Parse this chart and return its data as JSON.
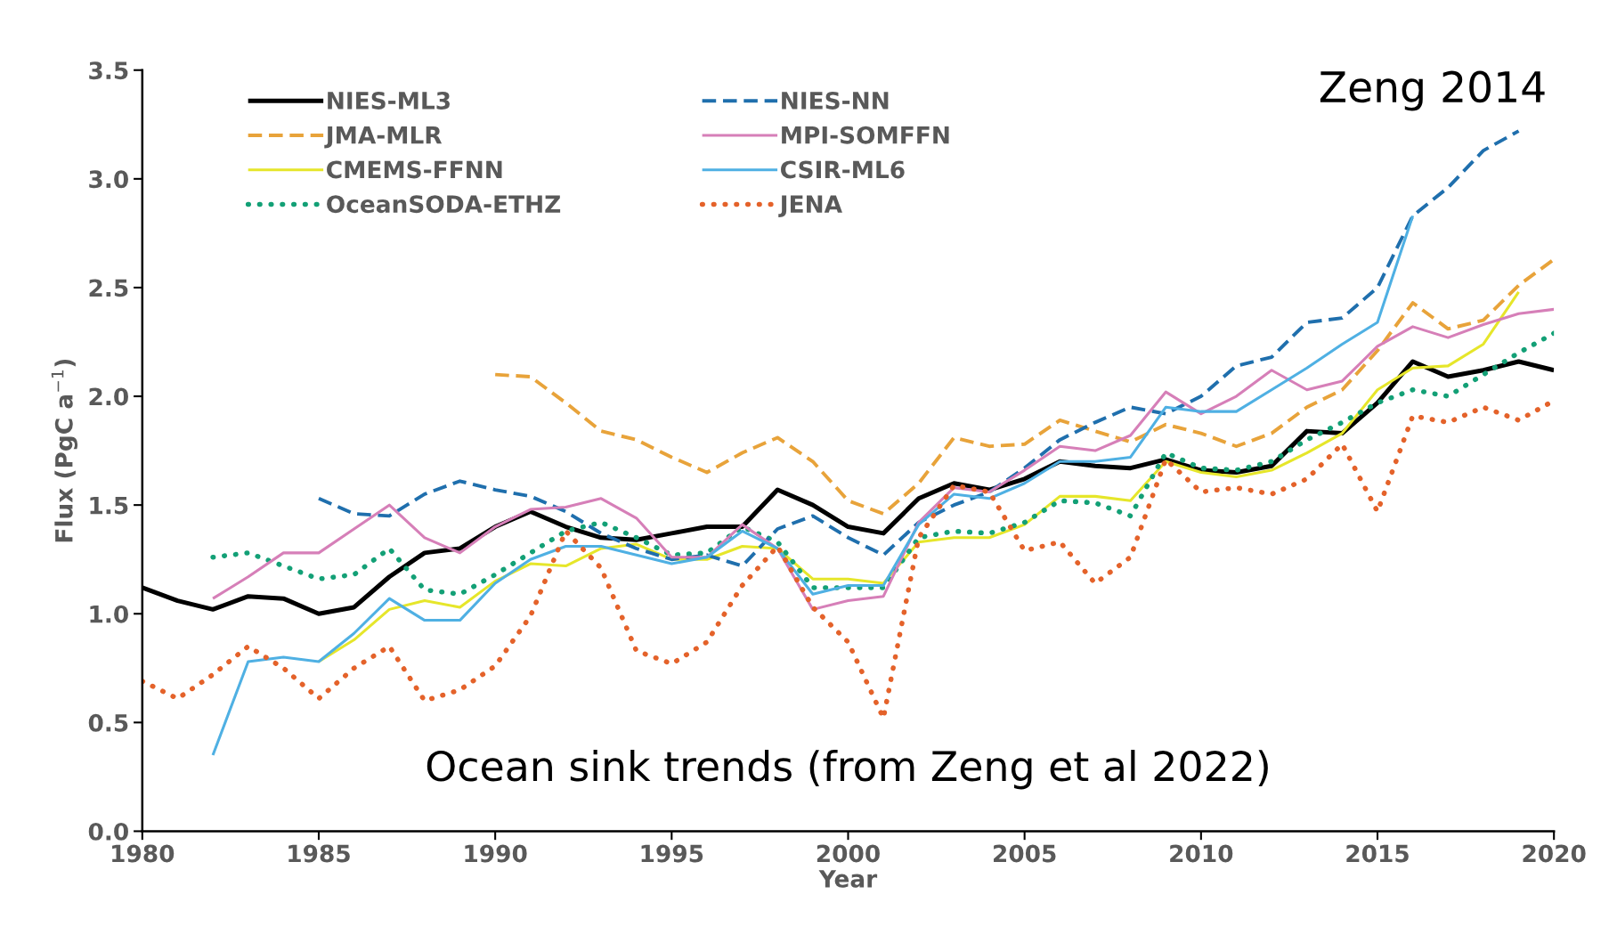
{
  "chart_data": {
    "type": "line",
    "xlabel": "Year",
    "ylabel": "Flux (PgC a$^{−1}$)",
    "xlim": [
      1980,
      2020
    ],
    "xticks": [
      1980,
      1985,
      1990,
      1995,
      2000,
      2005,
      2010,
      2015,
      2020
    ],
    "ylim": [
      0,
      3.5
    ],
    "yticks": [
      {
        "value": 0,
        "label": "0.0"
      },
      0.5,
      {
        "value": 1,
        "label": "1.0"
      },
      1.5,
      {
        "value": 2,
        "label": "2.0"
      },
      2.5,
      {
        "value": 3,
        "label": "3.0"
      },
      3.5
    ],
    "grid": false,
    "legend": "top left",
    "annotations": [
      "Zeng 2014",
      "Ocean sink trends (from Zeng et al 2022)"
    ],
    "series": [
      {
        "name": "NIES-ML3",
        "color": "#000000",
        "line_style": "solid",
        "x": [
          1980,
          1981,
          1982,
          1983,
          1984,
          1985,
          1986,
          1987,
          1988,
          1989,
          1990,
          1991,
          1992,
          1993,
          1994,
          1995,
          1996,
          1997,
          1998,
          1999,
          2000,
          2001,
          2002,
          2003,
          2004,
          2005,
          2006,
          2007,
          2008,
          2009,
          2010,
          2011,
          2012,
          2013,
          2014,
          2015,
          2016,
          2017,
          2018,
          2019,
          2020
        ],
        "values": [
          1.12,
          1.06,
          1.02,
          1.08,
          1.07,
          1.0,
          1.03,
          1.17,
          1.28,
          1.3,
          1.4,
          1.47,
          1.4,
          1.35,
          1.34,
          1.37,
          1.4,
          1.4,
          1.57,
          1.5,
          1.4,
          1.37,
          1.53,
          1.6,
          1.57,
          1.62,
          1.7,
          1.68,
          1.67,
          1.71,
          1.66,
          1.65,
          1.68,
          1.84,
          1.83,
          1.97,
          2.16,
          2.09,
          2.12,
          2.16,
          2.12
        ]
      },
      {
        "name": "JMA-MLR",
        "color": "#e8a33a",
        "line_style": "dashed",
        "x": [
          1990,
          1991,
          1992,
          1993,
          1994,
          1995,
          1996,
          1997,
          1998,
          1999,
          2000,
          2001,
          2002,
          2003,
          2004,
          2005,
          2006,
          2007,
          2008,
          2009,
          2010,
          2011,
          2012,
          2013,
          2014,
          2015,
          2016,
          2017,
          2018,
          2019,
          2020
        ],
        "values": [
          2.1,
          2.09,
          1.97,
          1.84,
          1.8,
          1.72,
          1.65,
          1.74,
          1.81,
          1.7,
          1.52,
          1.46,
          1.6,
          1.81,
          1.77,
          1.78,
          1.89,
          1.84,
          1.79,
          1.87,
          1.83,
          1.77,
          1.83,
          1.95,
          2.03,
          2.21,
          2.43,
          2.31,
          2.35,
          2.51,
          2.63
        ]
      },
      {
        "name": "CMEMS-FFNN",
        "color": "#e6e62a",
        "line_style": "solid",
        "x": [
          1985,
          1986,
          1987,
          1988,
          1989,
          1990,
          1991,
          1992,
          1993,
          1994,
          1995,
          1996,
          1997,
          1998,
          1999,
          2000,
          2001,
          2002,
          2003,
          2004,
          2005,
          2006,
          2007,
          2008,
          2009,
          2010,
          2011,
          2012,
          2013,
          2014,
          2015,
          2016,
          2017,
          2018,
          2019
        ],
        "values": [
          0.78,
          0.88,
          1.02,
          1.06,
          1.03,
          1.15,
          1.23,
          1.22,
          1.3,
          1.32,
          1.25,
          1.25,
          1.31,
          1.3,
          1.16,
          1.16,
          1.14,
          1.33,
          1.35,
          1.35,
          1.41,
          1.54,
          1.54,
          1.52,
          1.7,
          1.65,
          1.63,
          1.66,
          1.74,
          1.83,
          2.03,
          2.13,
          2.14,
          2.24,
          2.48
        ]
      },
      {
        "name": "OceanSODA-ETHZ",
        "color": "#13a076",
        "line_style": "dotted",
        "x": [
          1982,
          1983,
          1984,
          1985,
          1986,
          1987,
          1988,
          1989,
          1990,
          1991,
          1992,
          1993,
          1994,
          1995,
          1996,
          1997,
          1998,
          1999,
          2000,
          2001,
          2002,
          2003,
          2004,
          2005,
          2006,
          2007,
          2008,
          2009,
          2010,
          2011,
          2012,
          2013,
          2014,
          2015,
          2016,
          2017,
          2018,
          2019,
          2020
        ],
        "values": [
          1.26,
          1.28,
          1.22,
          1.16,
          1.18,
          1.3,
          1.11,
          1.09,
          1.18,
          1.28,
          1.38,
          1.42,
          1.35,
          1.27,
          1.28,
          1.4,
          1.33,
          1.12,
          1.12,
          1.12,
          1.35,
          1.38,
          1.37,
          1.42,
          1.52,
          1.51,
          1.45,
          1.74,
          1.67,
          1.66,
          1.7,
          1.8,
          1.88,
          1.97,
          2.03,
          2.0,
          2.1,
          2.2,
          2.29
        ]
      },
      {
        "name": "NIES-NN",
        "color": "#1f6fad",
        "line_style": "dashed",
        "x": [
          1985,
          1986,
          1987,
          1988,
          1989,
          1990,
          1991,
          1992,
          1993,
          1994,
          1995,
          1996,
          1997,
          1998,
          1999,
          2000,
          2001,
          2002,
          2003,
          2004,
          2005,
          2006,
          2007,
          2008,
          2009,
          2010,
          2011,
          2012,
          2013,
          2014,
          2015,
          2016,
          2017,
          2018,
          2019
        ],
        "values": [
          1.53,
          1.46,
          1.45,
          1.55,
          1.61,
          1.57,
          1.54,
          1.47,
          1.37,
          1.3,
          1.25,
          1.27,
          1.22,
          1.39,
          1.45,
          1.35,
          1.27,
          1.42,
          1.5,
          1.56,
          1.67,
          1.8,
          1.88,
          1.95,
          1.92,
          2.0,
          2.14,
          2.18,
          2.34,
          2.36,
          2.5,
          2.83,
          2.96,
          3.13,
          3.22
        ]
      },
      {
        "name": "MPI-SOMFFN",
        "color": "#d67fb8",
        "line_style": "solid",
        "x": [
          1982,
          1983,
          1984,
          1985,
          1986,
          1987,
          1988,
          1989,
          1990,
          1991,
          1992,
          1993,
          1994,
          1995,
          1996,
          1997,
          1998,
          1999,
          2000,
          2001,
          2002,
          2003,
          2004,
          2005,
          2006,
          2007,
          2008,
          2009,
          2010,
          2011,
          2012,
          2013,
          2014,
          2015,
          2016,
          2017,
          2018,
          2019,
          2020
        ],
        "values": [
          1.07,
          1.17,
          1.28,
          1.28,
          1.39,
          1.5,
          1.35,
          1.28,
          1.4,
          1.48,
          1.49,
          1.53,
          1.44,
          1.26,
          1.26,
          1.41,
          1.3,
          1.02,
          1.06,
          1.08,
          1.42,
          1.58,
          1.56,
          1.66,
          1.77,
          1.75,
          1.82,
          2.02,
          1.92,
          2.0,
          2.12,
          2.03,
          2.07,
          2.23,
          2.32,
          2.27,
          2.33,
          2.38,
          2.4
        ]
      },
      {
        "name": "CSIR-ML6",
        "color": "#4fb0e3",
        "line_style": "solid",
        "x": [
          1982,
          1983,
          1984,
          1985,
          1986,
          1987,
          1988,
          1989,
          1990,
          1991,
          1992,
          1993,
          1994,
          1995,
          1996,
          1997,
          1998,
          1999,
          2000,
          2001,
          2002,
          2003,
          2004,
          2005,
          2006,
          2007,
          2008,
          2009,
          2010,
          2011,
          2012,
          2013,
          2014,
          2015,
          2016
        ],
        "values": [
          0.35,
          0.78,
          0.8,
          0.78,
          0.91,
          1.07,
          0.97,
          0.97,
          1.14,
          1.25,
          1.31,
          1.31,
          1.27,
          1.23,
          1.26,
          1.38,
          1.3,
          1.09,
          1.13,
          1.13,
          1.41,
          1.55,
          1.53,
          1.6,
          1.7,
          1.7,
          1.72,
          1.95,
          1.93,
          1.93,
          2.03,
          2.13,
          2.24,
          2.34,
          2.83
        ]
      },
      {
        "name": "JENA",
        "color": "#e4622a",
        "line_style": "dotted",
        "x": [
          1980,
          1981,
          1982,
          1983,
          1984,
          1985,
          1986,
          1987,
          1988,
          1989,
          1990,
          1991,
          1992,
          1993,
          1994,
          1995,
          1996,
          1997,
          1998,
          1999,
          2000,
          2001,
          2002,
          2003,
          2004,
          2005,
          2006,
          2007,
          2008,
          2009,
          2010,
          2011,
          2012,
          2013,
          2014,
          2015,
          2016,
          2017,
          2018,
          2019,
          2020
        ],
        "values": [
          0.69,
          0.61,
          0.72,
          0.85,
          0.75,
          0.61,
          0.75,
          0.85,
          0.6,
          0.65,
          0.76,
          0.99,
          1.38,
          1.21,
          0.83,
          0.77,
          0.87,
          1.13,
          1.31,
          1.03,
          0.87,
          0.52,
          1.35,
          1.59,
          1.56,
          1.29,
          1.33,
          1.14,
          1.26,
          1.71,
          1.56,
          1.58,
          1.55,
          1.62,
          1.78,
          1.47,
          1.91,
          1.88,
          1.95,
          1.89,
          1.98
        ]
      }
    ]
  }
}
